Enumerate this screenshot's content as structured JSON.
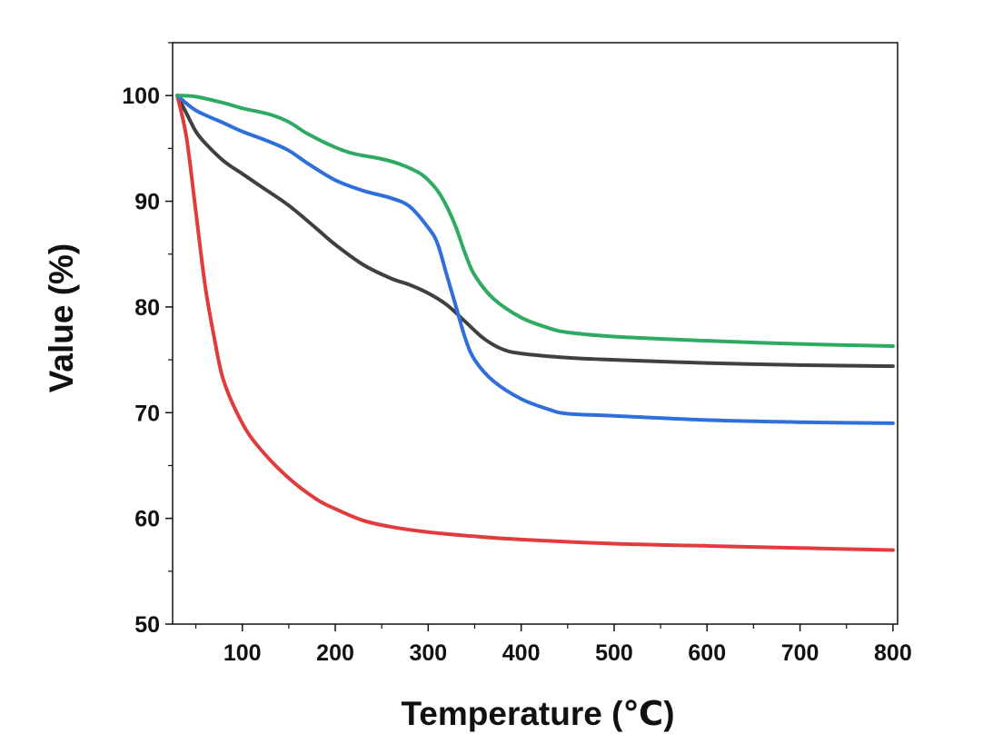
{
  "chart_data": {
    "type": "line",
    "title": "",
    "xlabel": "Temperature (℃)",
    "ylabel": "Value (%)",
    "xlim": [
      25,
      805
    ],
    "ylim": [
      50,
      105
    ],
    "x_ticks": [
      100,
      200,
      300,
      400,
      500,
      600,
      700,
      800
    ],
    "y_ticks": [
      50,
      60,
      70,
      80,
      90,
      100
    ],
    "grid": false,
    "legend": "none",
    "series": [
      {
        "color": "#404040",
        "points": [
          [
            30,
            100
          ],
          [
            40,
            98.3
          ],
          [
            50,
            96.6
          ],
          [
            60,
            95.5
          ],
          [
            80,
            93.8
          ],
          [
            100,
            92.6
          ],
          [
            120,
            91.4
          ],
          [
            150,
            89.6
          ],
          [
            180,
            87.4
          ],
          [
            200,
            85.9
          ],
          [
            230,
            84
          ],
          [
            260,
            82.7
          ],
          [
            280,
            82.1
          ],
          [
            300,
            81.3
          ],
          [
            320,
            80.2
          ],
          [
            340,
            78.6
          ],
          [
            360,
            77
          ],
          [
            380,
            76
          ],
          [
            400,
            75.6
          ],
          [
            450,
            75.2
          ],
          [
            500,
            75
          ],
          [
            600,
            74.7
          ],
          [
            700,
            74.5
          ],
          [
            800,
            74.4
          ]
        ]
      },
      {
        "color": "#e23b3b",
        "points": [
          [
            30,
            100
          ],
          [
            40,
            96
          ],
          [
            50,
            89
          ],
          [
            60,
            82
          ],
          [
            70,
            77
          ],
          [
            80,
            73
          ],
          [
            100,
            69
          ],
          [
            120,
            66.5
          ],
          [
            150,
            63.8
          ],
          [
            180,
            61.8
          ],
          [
            200,
            60.9
          ],
          [
            230,
            59.8
          ],
          [
            260,
            59.2
          ],
          [
            300,
            58.7
          ],
          [
            350,
            58.3
          ],
          [
            400,
            58
          ],
          [
            500,
            57.6
          ],
          [
            600,
            57.4
          ],
          [
            700,
            57.2
          ],
          [
            800,
            57
          ]
        ]
      },
      {
        "color": "#2f6fdc",
        "points": [
          [
            30,
            100
          ],
          [
            50,
            98.6
          ],
          [
            80,
            97.4
          ],
          [
            100,
            96.6
          ],
          [
            130,
            95.6
          ],
          [
            150,
            94.8
          ],
          [
            170,
            93.6
          ],
          [
            200,
            92
          ],
          [
            230,
            91
          ],
          [
            260,
            90.3
          ],
          [
            280,
            89.5
          ],
          [
            300,
            87.5
          ],
          [
            310,
            86
          ],
          [
            320,
            83
          ],
          [
            330,
            80
          ],
          [
            340,
            77
          ],
          [
            350,
            75
          ],
          [
            370,
            73
          ],
          [
            400,
            71.3
          ],
          [
            430,
            70.3
          ],
          [
            450,
            69.9
          ],
          [
            500,
            69.7
          ],
          [
            600,
            69.3
          ],
          [
            700,
            69.1
          ],
          [
            800,
            69
          ]
        ]
      },
      {
        "color": "#2eaa62",
        "points": [
          [
            30,
            100
          ],
          [
            50,
            99.9
          ],
          [
            80,
            99.3
          ],
          [
            100,
            98.8
          ],
          [
            130,
            98.2
          ],
          [
            150,
            97.5
          ],
          [
            170,
            96.4
          ],
          [
            200,
            95.1
          ],
          [
            220,
            94.5
          ],
          [
            250,
            94
          ],
          [
            270,
            93.5
          ],
          [
            290,
            92.7
          ],
          [
            300,
            92
          ],
          [
            310,
            91
          ],
          [
            320,
            89.5
          ],
          [
            330,
            87.5
          ],
          [
            340,
            85
          ],
          [
            350,
            83
          ],
          [
            370,
            80.8
          ],
          [
            400,
            79
          ],
          [
            430,
            78
          ],
          [
            450,
            77.6
          ],
          [
            500,
            77.2
          ],
          [
            600,
            76.8
          ],
          [
            700,
            76.5
          ],
          [
            800,
            76.3
          ]
        ]
      }
    ]
  }
}
